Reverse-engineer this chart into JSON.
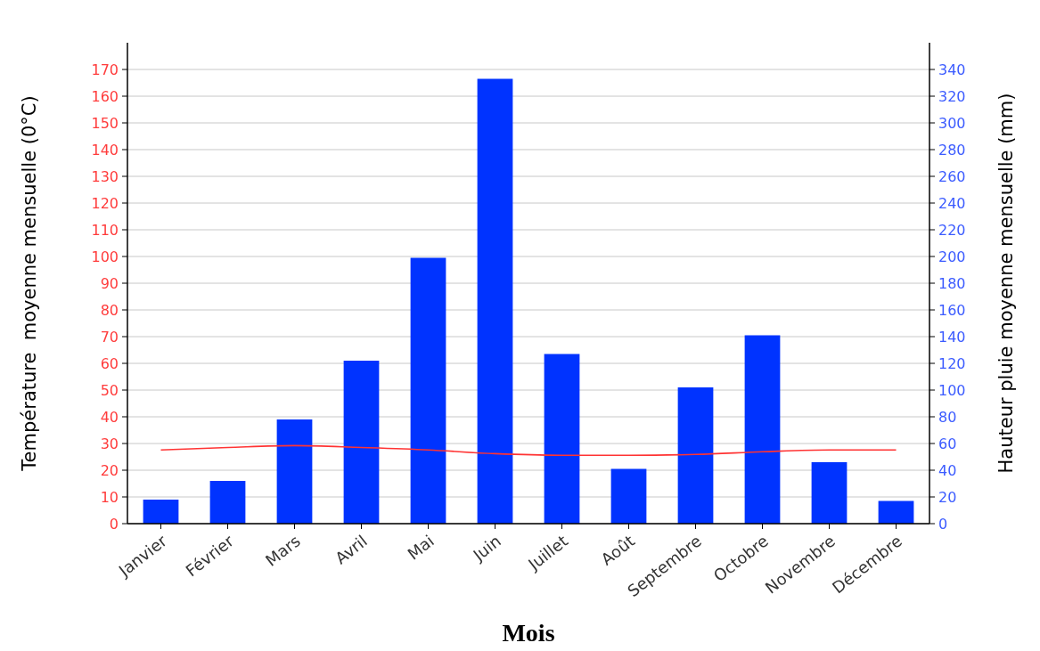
{
  "chart_data": {
    "type": "bar",
    "xlabel": "Mois",
    "ylabel": "Température  moyenne mensuelle (0°C)",
    "y2label": "Hauteur pluie moyenne mensuelle (mm)",
    "categories": [
      "Janvier",
      "Février",
      "Mars",
      "Avril",
      "Mai",
      "Juin",
      "Juillet",
      "Août",
      "Septembre",
      "Octobre",
      "Novembre",
      "Décembre"
    ],
    "series": [
      {
        "axis": "y2",
        "color": "#0033ff",
        "values": [
          18,
          32,
          78,
          122,
          199,
          333,
          127,
          41,
          102,
          141,
          46,
          17
        ]
      },
      {
        "type": "line",
        "axis": "y",
        "color": "#ff3333",
        "values": [
          27.6,
          28.5,
          29.2,
          28.5,
          27.6,
          26.2,
          25.6,
          25.6,
          25.9,
          26.9,
          27.6,
          27.6
        ]
      }
    ],
    "ylim": [
      0,
      180
    ],
    "yticks": [
      0,
      10,
      20,
      30,
      40,
      50,
      60,
      70,
      80,
      90,
      100,
      110,
      120,
      130,
      140,
      150,
      160,
      170
    ],
    "y2lim": [
      0,
      360
    ],
    "y2ticks": [
      0,
      20,
      40,
      60,
      80,
      100,
      120,
      140,
      160,
      180,
      200,
      220,
      240,
      260,
      280,
      300,
      320,
      340
    ],
    "grid": "y",
    "marker": "none",
    "line_style": "solid"
  }
}
